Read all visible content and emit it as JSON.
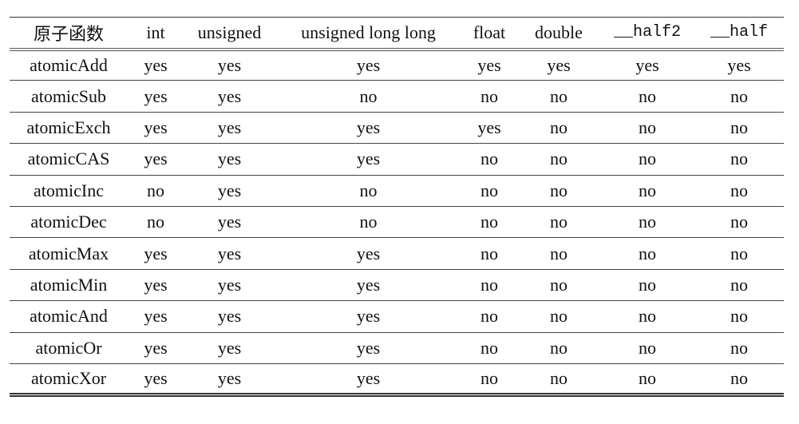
{
  "table": {
    "headers": [
      "原子函数",
      "int",
      "unsigned",
      "unsigned long long",
      "float",
      "double",
      "__half2",
      "__half"
    ],
    "rows": [
      [
        "atomicAdd",
        "yes",
        "yes",
        "yes",
        "yes",
        "yes",
        "yes",
        "yes"
      ],
      [
        "atomicSub",
        "yes",
        "yes",
        "no",
        "no",
        "no",
        "no",
        "no"
      ],
      [
        "atomicExch",
        "yes",
        "yes",
        "yes",
        "yes",
        "no",
        "no",
        "no"
      ],
      [
        "atomicCAS",
        "yes",
        "yes",
        "yes",
        "no",
        "no",
        "no",
        "no"
      ],
      [
        "atomicInc",
        "no",
        "yes",
        "no",
        "no",
        "no",
        "no",
        "no"
      ],
      [
        "atomicDec",
        "no",
        "yes",
        "no",
        "no",
        "no",
        "no",
        "no"
      ],
      [
        "atomicMax",
        "yes",
        "yes",
        "yes",
        "no",
        "no",
        "no",
        "no"
      ],
      [
        "atomicMin",
        "yes",
        "yes",
        "yes",
        "no",
        "no",
        "no",
        "no"
      ],
      [
        "atomicAnd",
        "yes",
        "yes",
        "yes",
        "no",
        "no",
        "no",
        "no"
      ],
      [
        "atomicOr",
        "yes",
        "yes",
        "yes",
        "no",
        "no",
        "no",
        "no"
      ],
      [
        "atomicXor",
        "yes",
        "yes",
        "yes",
        "no",
        "no",
        "no",
        "no"
      ]
    ]
  }
}
